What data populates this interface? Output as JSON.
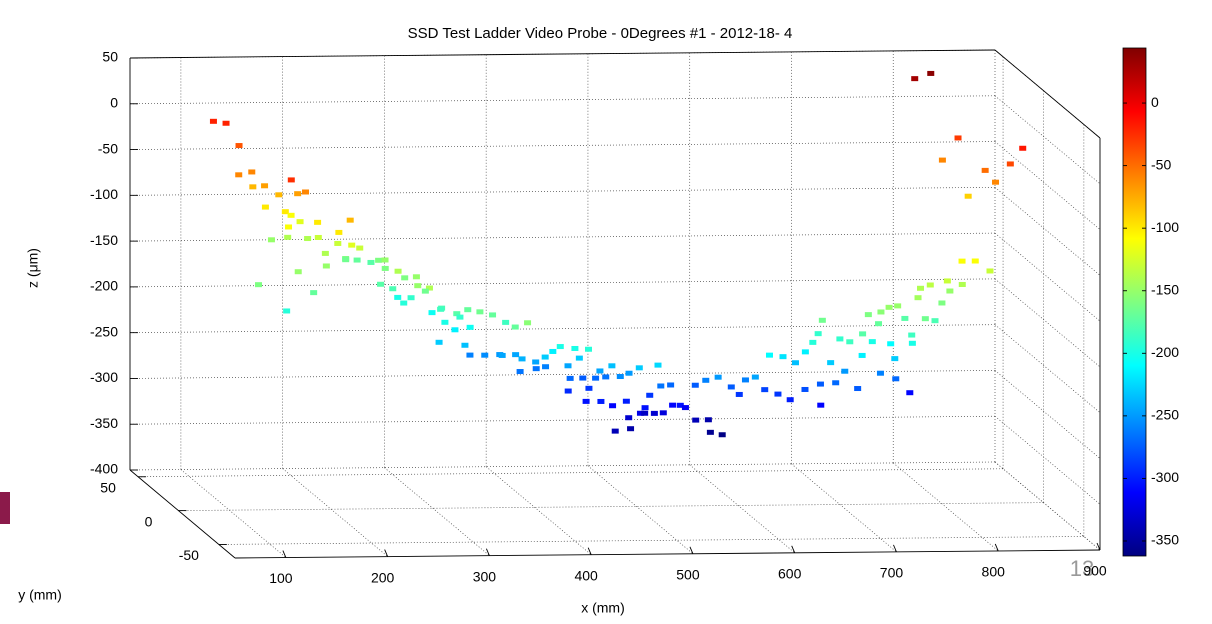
{
  "chart_data": {
    "type": "scatter3d",
    "title": "SSD Test Ladder Video Probe - 0Degrees #1 - 2012-18- 4",
    "xlabel": "x (mm)",
    "ylabel": "y (mm)",
    "zlabel": "z (μm)",
    "xlim": [
      50,
      900
    ],
    "ylim": [
      -70,
      60
    ],
    "zlim": [
      -400,
      50
    ],
    "xticks": [
      100,
      200,
      300,
      400,
      500,
      600,
      700,
      800,
      900
    ],
    "yticks": [
      -50,
      0,
      50
    ],
    "zticks": [
      -400,
      -350,
      -300,
      -250,
      -200,
      -150,
      -100,
      -50,
      0,
      50
    ],
    "clim": [
      -362,
      44
    ],
    "cticks": [
      -350,
      -300,
      -250,
      -200,
      -150,
      -100,
      -50,
      0
    ],
    "colormap": "jet",
    "grid": true,
    "x": [
      132,
      142,
      150,
      137,
      153,
      158,
      160,
      145,
      168,
      174,
      183,
      182,
      182,
      194,
      206,
      201,
      178,
      189,
      197,
      215,
      216,
      210,
      214,
      228,
      215,
      212,
      229,
      244,
      250,
      254,
      270,
      286,
      280,
      276,
      265,
      277,
      135,
      178,
      190,
      169,
      285,
      287,
      278,
      276,
      270,
      282,
      298,
      292,
      300,
      295,
      307,
      319,
      310,
      310,
      315,
      325,
      320,
      324,
      338,
      339,
      332,
      318,
      345,
      365,
      374,
      358,
      346,
      347,
      384,
      394,
      380,
      400,
      390,
      405,
      404,
      402,
      399,
      411,
      418,
      425,
      419,
      432,
      436,
      446,
      464,
      471,
      456,
      474,
      457,
      464,
      477,
      481,
      488,
      483,
      499,
      472,
      481,
      498,
      506,
      503,
      521,
      527,
      526,
      522,
      525,
      520,
      536,
      551,
      555,
      547,
      557,
      559,
      572,
      594,
      612,
      624,
      610,
      565,
      565,
      570,
      598,
      613,
      604,
      601,
      638,
      651,
      667,
      603,
      625,
      646,
      647,
      672,
      688,
      701,
      699,
      675,
      700,
      719,
      647,
      644,
      654,
      669,
      670,
      681,
      698,
      708,
      693,
      703,
      703,
      711,
      721,
      743,
      762,
      802,
      742,
      734,
      745,
      738,
      740,
      745,
      753,
      761,
      749,
      772,
      778,
      777,
      789,
      798,
      793,
      806,
      830,
      810,
      821,
      847,
      838,
      853,
      857,
      864,
      873,
      882
    ],
    "y": [
      60,
      57,
      51,
      35,
      39,
      44,
      32,
      -20,
      41,
      32,
      20,
      9,
      34,
      42,
      46,
      18,
      25,
      60,
      50,
      48,
      36,
      3,
      -6,
      27,
      26,
      21,
      11,
      20,
      45,
      50,
      56,
      59,
      42,
      29,
      -1,
      30,
      8,
      13,
      9,
      16,
      16,
      4,
      -9,
      -26,
      27,
      27,
      41,
      26,
      27,
      3,
      -2,
      25,
      3,
      -17,
      4,
      -2,
      -18,
      -28,
      -26,
      3,
      13,
      15,
      17,
      36,
      29,
      -17,
      -44,
      -58,
      23,
      16,
      15,
      18,
      3,
      5,
      -8,
      -20,
      -33,
      -36,
      -44,
      18,
      22,
      -1,
      -10,
      14,
      21,
      14,
      29,
      26,
      -9,
      -15,
      9,
      -4,
      -6,
      -25,
      -28,
      27,
      20,
      27,
      20,
      30,
      36,
      29,
      40,
      17,
      15,
      -5,
      3,
      42,
      36,
      49,
      27,
      20,
      30,
      45,
      52,
      50,
      47,
      9,
      -4,
      -13,
      6,
      15,
      -4,
      -20,
      15,
      15,
      20,
      -35,
      -24,
      -13,
      -24,
      8,
      9,
      25,
      4,
      -20,
      -6,
      2,
      -45,
      -37,
      -31,
      -39,
      -50,
      -52,
      -30,
      -30,
      -44,
      -47,
      -44,
      -47,
      -45,
      4,
      9,
      42,
      -15,
      -20,
      -33,
      -41,
      -30,
      -40,
      -33,
      -35,
      -44,
      -27,
      -28,
      -36,
      -24,
      -28,
      -34,
      -34,
      -22,
      46,
      40,
      39,
      47,
      34,
      18,
      14,
      7,
      3
    ],
    "z": [
      -20,
      -20,
      -40,
      -60,
      -60,
      -80,
      -70,
      -25,
      -100,
      -80,
      -70,
      -60,
      -100,
      -110,
      -120,
      -100,
      -110,
      -150,
      -140,
      -140,
      -130,
      -100,
      -80,
      -130,
      -140,
      -150,
      -120,
      -130,
      -160,
      -165,
      -170,
      -175,
      -160,
      -150,
      -140,
      -160,
      -160,
      -150,
      -170,
      -195,
      -160,
      -150,
      -150,
      -140,
      -175,
      -180,
      -200,
      -195,
      -190,
      -165,
      -180,
      -205,
      -185,
      -175,
      -200,
      -190,
      -170,
      -165,
      -170,
      -205,
      -215,
      -230,
      -235,
      -260,
      -255,
      -185,
      -170,
      -155,
      -250,
      -245,
      -245,
      -265,
      -240,
      -245,
      -230,
      -215,
      -200,
      -200,
      -195,
      -260,
      -265,
      -245,
      -230,
      -270,
      -275,
      -270,
      -295,
      -290,
      -245,
      -235,
      -265,
      -255,
      -250,
      -230,
      -225,
      -305,
      -300,
      -310,
      -300,
      -340,
      -330,
      -320,
      -345,
      -305,
      -290,
      -265,
      -270,
      -330,
      -325,
      -335,
      -310,
      -305,
      -315,
      -340,
      -345,
      -360,
      -355,
      -275,
      -260,
      -250,
      -275,
      -290,
      -260,
      -245,
      -285,
      -290,
      -300,
      -210,
      -220,
      -235,
      -215,
      -280,
      -275,
      -310,
      -270,
      -230,
      -250,
      -275,
      -165,
      -195,
      -190,
      -190,
      -185,
      -175,
      -215,
      -200,
      -160,
      -155,
      -170,
      -150,
      -150,
      -260,
      -270,
      -310,
      -230,
      -210,
      -200,
      -185,
      -175,
      -145,
      -140,
      -135,
      -165,
      -180,
      -160,
      -130,
      -150,
      -140,
      -110,
      -110,
      -130,
      30,
      40,
      -30,
      -60,
      -90,
      -50,
      -60,
      -35,
      -15
    ]
  },
  "page_number": "13"
}
